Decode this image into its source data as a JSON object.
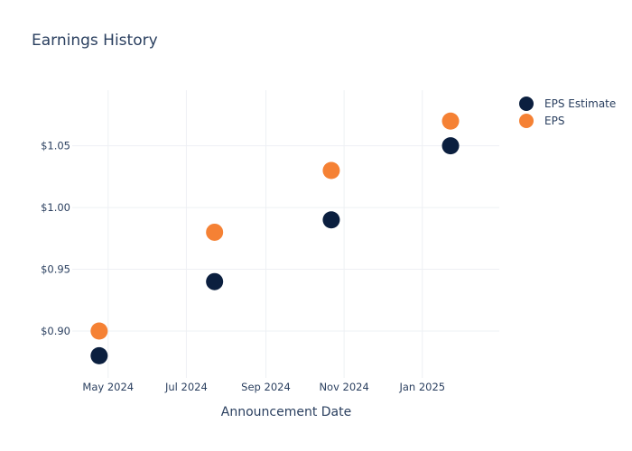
{
  "chart_data": {
    "type": "scatter",
    "title": "Earnings History",
    "xlabel": "Announcement Date",
    "ylabel": "",
    "x_ticks": [
      {
        "date": "2024-05-01",
        "label": "May 2024"
      },
      {
        "date": "2024-07-01",
        "label": "Jul 2024"
      },
      {
        "date": "2024-09-01",
        "label": "Sep 2024"
      },
      {
        "date": "2024-11-01",
        "label": "Nov 2024"
      },
      {
        "date": "2025-01-01",
        "label": "Jan 2025"
      }
    ],
    "y_ticks": [
      {
        "value": 0.9,
        "label": "$0.90"
      },
      {
        "value": 0.95,
        "label": "$0.95"
      },
      {
        "value": 1.0,
        "label": "$1.00"
      },
      {
        "value": 1.05,
        "label": "$1.05"
      }
    ],
    "xlim": [
      "2024-04-03",
      "2025-03-02"
    ],
    "ylim": [
      0.862,
      1.095
    ],
    "grid": true,
    "legend_position": "top-right",
    "series": [
      {
        "name": "EPS Estimate",
        "color": "#0b1f3f",
        "points": [
          {
            "x": "2024-04-24",
            "y": 0.88
          },
          {
            "x": "2024-07-23",
            "y": 0.94
          },
          {
            "x": "2024-10-22",
            "y": 0.99
          },
          {
            "x": "2025-01-23",
            "y": 1.05
          }
        ]
      },
      {
        "name": "EPS",
        "color": "#f58134",
        "points": [
          {
            "x": "2024-04-24",
            "y": 0.9
          },
          {
            "x": "2024-07-23",
            "y": 0.98
          },
          {
            "x": "2024-10-22",
            "y": 1.03
          },
          {
            "x": "2025-01-23",
            "y": 1.07
          }
        ]
      }
    ]
  }
}
